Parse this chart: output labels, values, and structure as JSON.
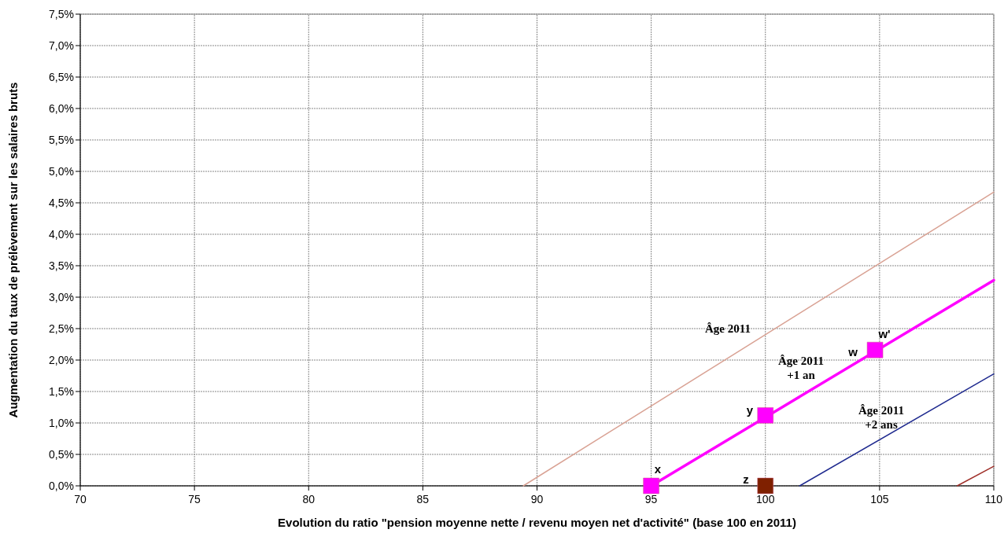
{
  "chart_data": {
    "type": "line",
    "xlabel": "Evolution du ratio \"pension moyenne nette / revenu moyen net d'activité\" (base 100 en 2011)",
    "ylabel": "Augmentation du taux de prélèvement sur les salaires bruts",
    "xlim": [
      70,
      110
    ],
    "xticks": [
      70,
      75,
      80,
      85,
      90,
      95,
      100,
      105,
      110
    ],
    "ylim": [
      0,
      7.5
    ],
    "yticks": [
      {
        "value": 0,
        "label": "0,0%"
      },
      {
        "value": 0.5,
        "label": "0,5%"
      },
      {
        "value": 1,
        "label": "1,0%"
      },
      {
        "value": 1.5,
        "label": "1,5%"
      },
      {
        "value": 2,
        "label": "2,0%"
      },
      {
        "value": 2.5,
        "label": "2,5%"
      },
      {
        "value": 3,
        "label": "3,0%"
      },
      {
        "value": 3.5,
        "label": "3,5%"
      },
      {
        "value": 4,
        "label": "4,0%"
      },
      {
        "value": 4.5,
        "label": "4,5%"
      },
      {
        "value": 5,
        "label": "5,0%"
      },
      {
        "value": 5.5,
        "label": "5,5%"
      },
      {
        "value": 6,
        "label": "6,0%"
      },
      {
        "value": 6.5,
        "label": "6,5%"
      },
      {
        "value": 7,
        "label": "7,0%"
      },
      {
        "value": 7.5,
        "label": "7,5%"
      }
    ],
    "grid": true,
    "line_style": "solid",
    "series": [
      {
        "name": "Âge 2011",
        "color": "#d9a294",
        "x": [
          89.4,
          110
        ],
        "values": [
          0,
          4.67
        ]
      },
      {
        "name": "Âge 2011\n+1 an",
        "color": "#ff00ff",
        "x": [
          95,
          110
        ],
        "values": [
          0,
          3.27
        ]
      },
      {
        "name": "Âge 2011\n+2 ans",
        "color": "#1f2a8f",
        "x": [
          101.5,
          110
        ],
        "values": [
          0,
          1.78
        ]
      },
      {
        "color": "#a0302a",
        "x": [
          108.4,
          110
        ],
        "values": [
          0,
          0.31
        ]
      },
      {
        "type": "scatter",
        "color": "#ff00ff",
        "x": [
          95,
          100,
          104.8
        ],
        "values": [
          0,
          1.12,
          2.16
        ],
        "marker": "square"
      },
      {
        "type": "scatter",
        "color": "#7f2000",
        "x": [
          100
        ],
        "values": [
          0
        ],
        "marker": "square"
      }
    ],
    "annotations": [
      "x",
      "y",
      "z",
      "w",
      "w'"
    ]
  }
}
